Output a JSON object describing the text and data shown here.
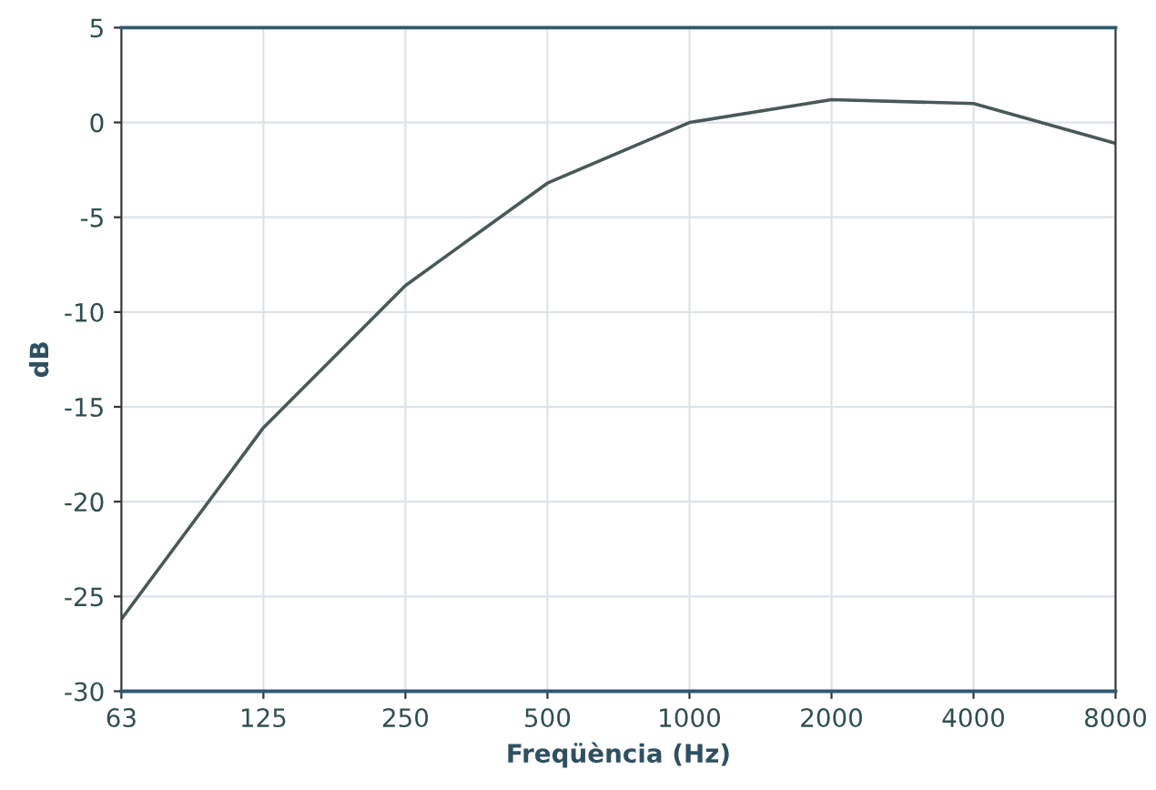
{
  "chart_data": {
    "type": "line",
    "xlabel": "Freqüència (Hz)",
    "ylabel": "dB",
    "categories": [
      "63",
      "125",
      "250",
      "500",
      "1000",
      "2000",
      "4000",
      "8000"
    ],
    "series": [
      {
        "color": "#4a5858",
        "values": [
          -26.2,
          -16.1,
          -8.6,
          -3.2,
          0,
          1.2,
          1.0,
          -1.1
        ]
      }
    ],
    "ylim": [
      -30,
      5
    ],
    "yticks": [
      -30,
      -25,
      -20,
      -15,
      -10,
      -5,
      0,
      5
    ],
    "grid": true,
    "marker": "none",
    "line_style": "solid"
  }
}
